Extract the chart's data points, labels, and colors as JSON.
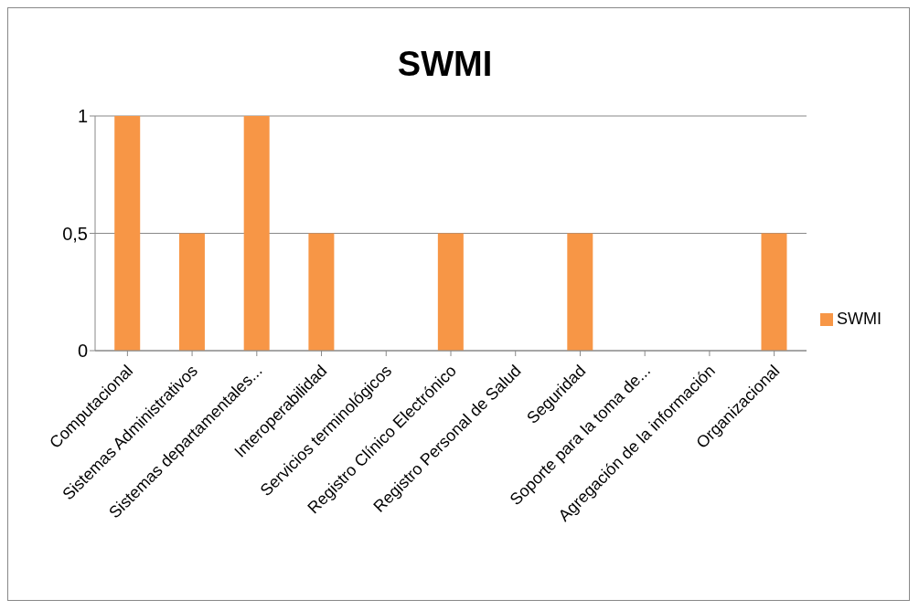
{
  "chart_data": {
    "type": "bar",
    "title": "SWMI",
    "categories": [
      "Computacional",
      "Sistemas Administrativos",
      "Sistemas departamentales...",
      "Interoperabilidad",
      "Servicios terminológicos",
      "Registro Clínico Electrónico",
      "Registro Personal de Salud",
      "Seguridad",
      "Soporte para la toma de...",
      "Agregación de la información",
      "Organizacional"
    ],
    "series": [
      {
        "name": "SWMI",
        "color": "#f79646",
        "values": [
          1,
          0.5,
          1,
          0.5,
          0,
          0.5,
          0,
          0.5,
          0,
          0,
          0.5
        ]
      }
    ],
    "ylim": [
      0,
      1
    ],
    "yticks": [
      0,
      {
        "value": 0.5,
        "label": "0,5"
      },
      1
    ],
    "grid": "y",
    "legend": "right"
  }
}
